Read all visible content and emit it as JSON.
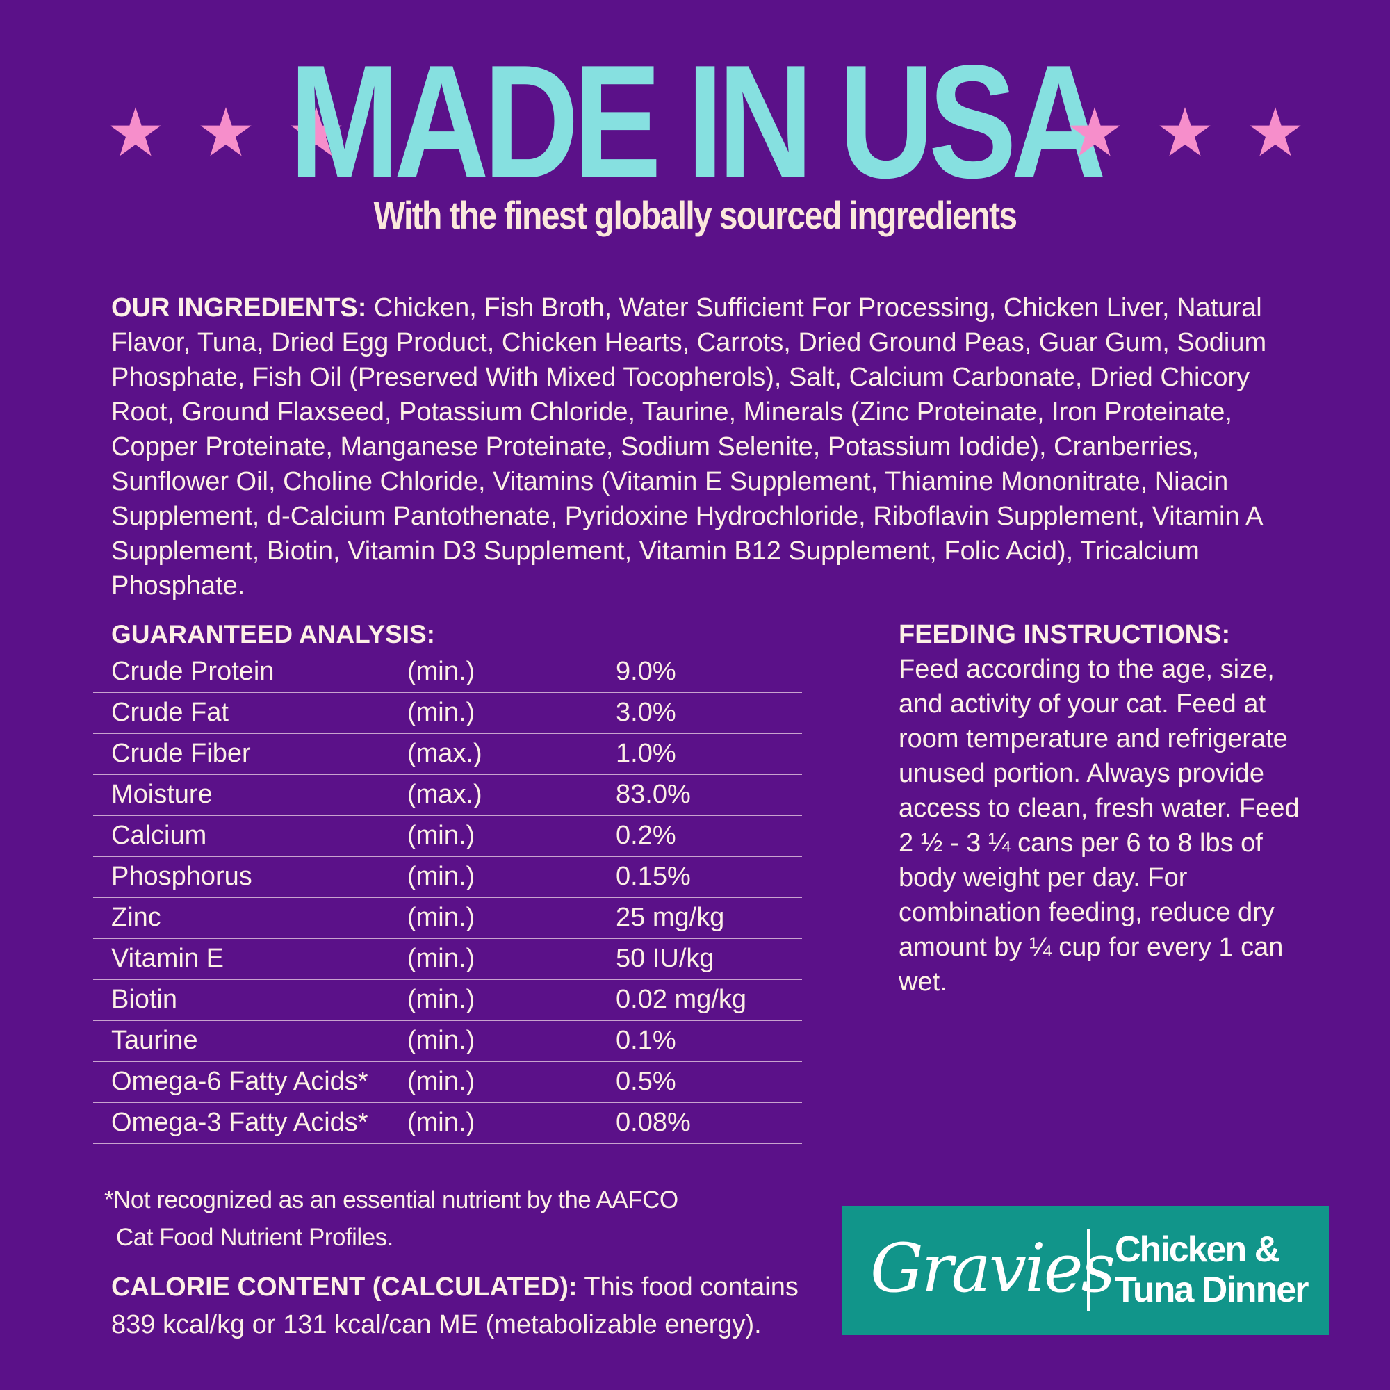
{
  "colors": {
    "background": "#5b1189",
    "title": "#86e0e0",
    "star": "#f68ecb",
    "badge": "#11958a",
    "text": "#fdf0e6"
  },
  "header": {
    "title": "MADE IN USA",
    "subtitle": "With the finest globally sourced ingredients",
    "star_icon": "star-icon"
  },
  "ingredients": {
    "label": "OUR INGREDIENTS:",
    "text": " Chicken, Fish Broth, Water Sufficient For Processing, Chicken Liver, Natural Flavor, Tuna, Dried Egg Product, Chicken Hearts, Carrots, Dried Ground Peas, Guar Gum, Sodium Phosphate, Fish Oil (Preserved With Mixed Tocopherols), Salt, Calcium Carbonate, Dried Chicory Root, Ground Flaxseed, Potassium Chloride, Taurine, Minerals (Zinc Proteinate, Iron Proteinate, Copper Proteinate, Manganese Proteinate, Sodium Selenite, Potassium Iodide), Cranberries, Sunflower Oil, Choline Chloride, Vitamins (Vitamin E Supplement, Thiamine Mononitrate, Niacin Supplement, d-Calcium Pantothenate, Pyridoxine Hydrochloride, Riboflavin Supplement, Vitamin A Supplement, Biotin, Vitamin D3 Supplement, Vitamin B12 Supplement, Folic Acid), Tricalcium Phosphate."
  },
  "analysis": {
    "heading": "GUARANTEED ANALYSIS:",
    "rows": [
      {
        "name": "Crude Protein",
        "qualifier": "(min.)",
        "value": "9.0%"
      },
      {
        "name": "Crude Fat",
        "qualifier": "(min.)",
        "value": "3.0%"
      },
      {
        "name": "Crude Fiber",
        "qualifier": "(max.)",
        "value": "1.0%"
      },
      {
        "name": "Moisture",
        "qualifier": "(max.)",
        "value": "83.0%"
      },
      {
        "name": "Calcium",
        "qualifier": "(min.)",
        "value": "0.2%"
      },
      {
        "name": "Phosphorus",
        "qualifier": "(min.)",
        "value": "0.15%"
      },
      {
        "name": "Zinc",
        "qualifier": "(min.)",
        "value": "25 mg/kg"
      },
      {
        "name": "Vitamin E",
        "qualifier": "(min.)",
        "value": "50 IU/kg"
      },
      {
        "name": "Biotin",
        "qualifier": "(min.)",
        "value": "0.02 mg/kg"
      },
      {
        "name": "Taurine",
        "qualifier": "(min.)",
        "value": "0.1%"
      },
      {
        "name": "Omega-6 Fatty Acids*",
        "qualifier": "(min.)",
        "value": "0.5%"
      },
      {
        "name": "Omega-3 Fatty Acids*",
        "qualifier": "(min.)",
        "value": "0.08%"
      }
    ]
  },
  "feeding": {
    "label": "FEEDING INSTRUCTIONS:",
    "text": "Feed according to the age, size, and activity of your cat. Feed at room temperature and refrigerate unused portion. Always provide access to clean, fresh water. Feed 2 ½ - 3 ¼ cans per 6 to 8 lbs of body weight per day. For combination feeding, reduce dry amount by ¼ cup for every 1 can wet."
  },
  "footnote": {
    "line1": "*Not recognized as an essential nutrient by the AAFCO",
    "line2": "Cat Food Nutrient Profiles."
  },
  "calorie": {
    "label": "CALORIE CONTENT (CALCULATED):",
    "text": " This food contains 839 kcal/kg or 131 kcal/can ME (metabolizable energy)."
  },
  "badge": {
    "brand": "Gravies",
    "product_line1": "Chicken &",
    "product_line2": "Tuna Dinner"
  }
}
